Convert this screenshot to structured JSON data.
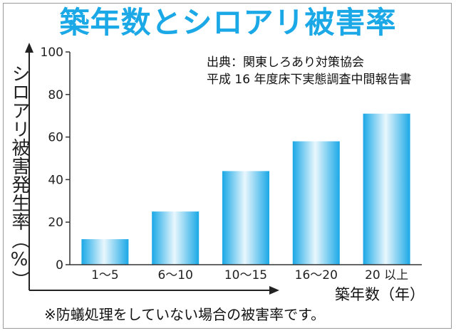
{
  "chart_data": {
    "type": "bar",
    "title": "築年数とシロアリ被害率",
    "source_line1": "出典：関東しろあり対策協会",
    "source_line2": "平成 16 年度床下実態調査中間報告書",
    "ylabel": "シロアリ被害発生率（%）",
    "xlabel": "築年数（年）",
    "note": "※防蟻処理をしていない場合の被害率です。",
    "categories": [
      "1〜5",
      "6〜10",
      "10〜15",
      "16〜20",
      "20 以上"
    ],
    "values": [
      12,
      25,
      44,
      58,
      71
    ],
    "ylim": [
      0,
      100
    ],
    "yticks": [
      0,
      20,
      40,
      60,
      80,
      100
    ],
    "grid": false,
    "bar_color": "#1aa8e6",
    "title_color": "#1aa8e6"
  }
}
